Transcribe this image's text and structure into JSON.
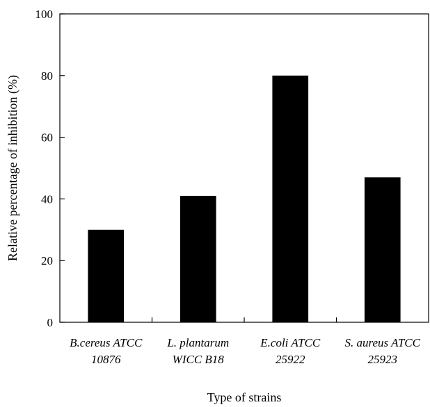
{
  "chart_data": {
    "type": "bar",
    "title": "",
    "xlabel": "Type of strains",
    "ylabel": "Relative percentage of inhibition (%)",
    "ylim": [
      0,
      100
    ],
    "yticks": [
      "0",
      "20",
      "40",
      "60",
      "80",
      "100"
    ],
    "grid": false,
    "categories": [
      "B.cereus ATCC 10876",
      "L. plantarum WICC B18",
      "E.coli ATCC 25922",
      "S. aureus ATCC 25923"
    ],
    "category_lines": [
      [
        "B.cereus ATCC",
        "10876"
      ],
      [
        "L. plantarum",
        "WICC B18"
      ],
      [
        "E.coli ATCC",
        "25922"
      ],
      [
        "S. aureus ATCC",
        "25923"
      ]
    ],
    "values": [
      30,
      41,
      80,
      47
    ],
    "bar_color": "#000000"
  }
}
